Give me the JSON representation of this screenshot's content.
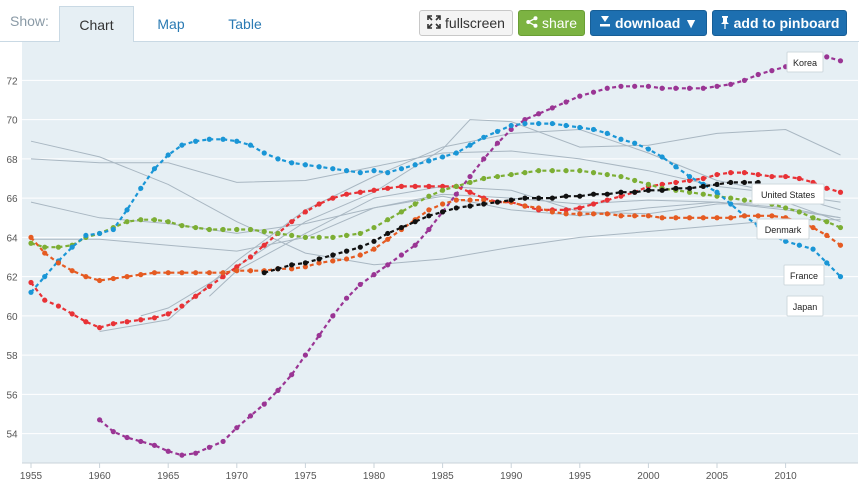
{
  "toolbar": {
    "show_label": "Show:",
    "tabs": [
      {
        "label": "Chart",
        "active": true
      },
      {
        "label": "Map",
        "active": false
      },
      {
        "label": "Table",
        "active": false
      }
    ],
    "fullscreen_label": "fullscreen",
    "share_label": "share",
    "download_label": "download ▼",
    "pin_label": "add to pinboard"
  },
  "colors": {
    "plot_bg": "#e6eff4",
    "korea": "#9a3594",
    "united_states": "#e83236",
    "denmark": "#7cae34",
    "france": "#1a96d6",
    "japan": "#e55b22",
    "black_series": "#111111",
    "background_lines": "#a9b7c2"
  },
  "chart_data": {
    "type": "line",
    "xlim": [
      1955,
      2014
    ],
    "ylim": [
      52.5,
      73.5
    ],
    "x_ticks": [
      1955,
      1960,
      1965,
      1970,
      1975,
      1980,
      1985,
      1990,
      1995,
      2000,
      2005,
      2010
    ],
    "y_ticks": [
      54,
      56,
      58,
      60,
      62,
      64,
      66,
      68,
      70,
      72
    ],
    "grid": true,
    "series": [
      {
        "name": "Korea",
        "color_key": "korea",
        "label_at_end": true,
        "x": [
          1960,
          1961,
          1962,
          1963,
          1964,
          1965,
          1966,
          1967,
          1968,
          1969,
          1970,
          1971,
          1972,
          1973,
          1974,
          1975,
          1976,
          1977,
          1978,
          1979,
          1980,
          1981,
          1982,
          1983,
          1984,
          1985,
          1986,
          1987,
          1988,
          1989,
          1990,
          1991,
          1992,
          1993,
          1994,
          1995,
          1996,
          1997,
          1998,
          1999,
          2000,
          2001,
          2002,
          2003,
          2004,
          2005,
          2006,
          2007,
          2008,
          2009,
          2010,
          2011,
          2012,
          2013,
          2014
        ],
        "y": [
          54.7,
          54.1,
          53.8,
          53.6,
          53.4,
          53.1,
          52.9,
          53.0,
          53.3,
          53.6,
          54.3,
          54.9,
          55.5,
          56.2,
          57.0,
          58.0,
          59.0,
          60.0,
          60.9,
          61.6,
          62.1,
          62.6,
          63.1,
          63.6,
          64.4,
          65.3,
          66.2,
          67.1,
          68.0,
          68.8,
          69.5,
          70.0,
          70.3,
          70.6,
          70.9,
          71.2,
          71.4,
          71.6,
          71.7,
          71.7,
          71.7,
          71.6,
          71.6,
          71.6,
          71.6,
          71.7,
          71.8,
          72.0,
          72.3,
          72.5,
          72.7,
          72.9,
          73.1,
          73.2,
          73.0
        ]
      },
      {
        "name": "United States",
        "color_key": "united_states",
        "label_at_end": true,
        "x": [
          1955,
          1956,
          1957,
          1958,
          1959,
          1960,
          1961,
          1962,
          1963,
          1964,
          1965,
          1966,
          1967,
          1968,
          1969,
          1970,
          1971,
          1972,
          1973,
          1974,
          1975,
          1976,
          1977,
          1978,
          1979,
          1980,
          1981,
          1982,
          1983,
          1984,
          1985,
          1986,
          1987,
          1988,
          1989,
          1990,
          1991,
          1992,
          1993,
          1994,
          1995,
          1996,
          1997,
          1998,
          1999,
          2000,
          2001,
          2002,
          2003,
          2004,
          2005,
          2006,
          2007,
          2008,
          2009,
          2010,
          2011,
          2012,
          2013,
          2014
        ],
        "y": [
          61.7,
          60.8,
          60.5,
          60.1,
          59.7,
          59.4,
          59.6,
          59.7,
          59.8,
          59.9,
          60.1,
          60.5,
          61.0,
          61.5,
          62.0,
          62.5,
          63.0,
          63.6,
          64.2,
          64.8,
          65.3,
          65.7,
          66.0,
          66.2,
          66.3,
          66.4,
          66.5,
          66.6,
          66.6,
          66.6,
          66.6,
          66.6,
          66.3,
          66.0,
          65.8,
          65.8,
          65.6,
          65.4,
          65.4,
          65.4,
          65.5,
          65.7,
          65.9,
          66.1,
          66.3,
          66.6,
          66.7,
          66.8,
          66.9,
          67.0,
          67.2,
          67.3,
          67.3,
          67.2,
          67.1,
          67.1,
          67.0,
          66.8,
          66.5,
          66.3
        ]
      },
      {
        "name": "Denmark",
        "color_key": "denmark",
        "label_at_end": true,
        "x": [
          1955,
          1956,
          1957,
          1958,
          1959,
          1960,
          1961,
          1962,
          1963,
          1964,
          1965,
          1966,
          1967,
          1968,
          1969,
          1970,
          1971,
          1972,
          1973,
          1974,
          1975,
          1976,
          1977,
          1978,
          1979,
          1980,
          1981,
          1982,
          1983,
          1984,
          1985,
          1986,
          1987,
          1988,
          1989,
          1990,
          1991,
          1992,
          1993,
          1994,
          1995,
          1996,
          1997,
          1998,
          1999,
          2000,
          2001,
          2002,
          2003,
          2004,
          2005,
          2006,
          2007,
          2008,
          2009,
          2010,
          2011,
          2012,
          2013,
          2014
        ],
        "y": [
          63.7,
          63.5,
          63.5,
          63.6,
          64.0,
          64.2,
          64.5,
          64.8,
          64.9,
          64.9,
          64.8,
          64.6,
          64.5,
          64.4,
          64.4,
          64.4,
          64.4,
          64.3,
          64.2,
          64.1,
          64.0,
          64.0,
          64.0,
          64.1,
          64.2,
          64.5,
          64.9,
          65.3,
          65.7,
          66.1,
          66.4,
          66.6,
          66.8,
          67.0,
          67.1,
          67.2,
          67.3,
          67.4,
          67.4,
          67.4,
          67.4,
          67.3,
          67.2,
          67.1,
          66.9,
          66.7,
          66.5,
          66.4,
          66.3,
          66.2,
          66.1,
          66.0,
          65.9,
          65.8,
          65.7,
          65.5,
          65.3,
          65.0,
          64.8,
          64.5
        ]
      },
      {
        "name": "France",
        "color_key": "france",
        "label_at_end": true,
        "x": [
          1955,
          1956,
          1957,
          1958,
          1959,
          1960,
          1961,
          1962,
          1963,
          1964,
          1965,
          1966,
          1967,
          1968,
          1969,
          1970,
          1971,
          1972,
          1973,
          1974,
          1975,
          1976,
          1977,
          1978,
          1979,
          1980,
          1981,
          1982,
          1983,
          1984,
          1985,
          1986,
          1987,
          1988,
          1989,
          1990,
          1991,
          1992,
          1993,
          1994,
          1995,
          1996,
          1997,
          1998,
          1999,
          2000,
          2001,
          2002,
          2003,
          2004,
          2005,
          2006,
          2007,
          2008,
          2009,
          2010,
          2011,
          2012,
          2013,
          2014
        ],
        "y": [
          61.2,
          62.0,
          62.8,
          63.5,
          64.1,
          64.2,
          64.4,
          65.4,
          66.5,
          67.5,
          68.2,
          68.7,
          68.9,
          69.0,
          69.0,
          68.9,
          68.7,
          68.3,
          68.0,
          67.8,
          67.7,
          67.6,
          67.5,
          67.4,
          67.3,
          67.4,
          67.3,
          67.5,
          67.7,
          67.9,
          68.1,
          68.3,
          68.7,
          69.1,
          69.4,
          69.7,
          69.8,
          69.8,
          69.8,
          69.7,
          69.6,
          69.5,
          69.3,
          69.0,
          68.8,
          68.5,
          68.1,
          67.6,
          67.1,
          66.7,
          66.3,
          65.7,
          65.1,
          64.6,
          64.1,
          63.8,
          63.6,
          63.4,
          62.7,
          62.0
        ]
      },
      {
        "name": "Japan",
        "color_key": "japan",
        "label_at_end": true,
        "x": [
          1955,
          1956,
          1957,
          1958,
          1959,
          1960,
          1961,
          1962,
          1963,
          1964,
          1965,
          1966,
          1967,
          1968,
          1969,
          1970,
          1971,
          1972,
          1973,
          1974,
          1975,
          1976,
          1977,
          1978,
          1979,
          1980,
          1981,
          1982,
          1983,
          1984,
          1985,
          1986,
          1987,
          1988,
          1989,
          1990,
          1991,
          1992,
          1993,
          1994,
          1995,
          1996,
          1997,
          1998,
          1999,
          2000,
          2001,
          2002,
          2003,
          2004,
          2005,
          2006,
          2007,
          2008,
          2009,
          2010,
          2011,
          2012,
          2013,
          2014
        ],
        "y": [
          64.0,
          63.2,
          62.7,
          62.3,
          62.0,
          61.8,
          61.9,
          62.0,
          62.1,
          62.2,
          62.2,
          62.2,
          62.2,
          62.2,
          62.2,
          62.3,
          62.3,
          62.3,
          62.4,
          62.4,
          62.5,
          62.7,
          62.8,
          62.9,
          63.1,
          63.4,
          63.9,
          64.4,
          64.9,
          65.4,
          65.7,
          65.9,
          65.9,
          65.9,
          65.8,
          65.8,
          65.6,
          65.5,
          65.3,
          65.2,
          65.2,
          65.2,
          65.2,
          65.1,
          65.1,
          65.1,
          65.0,
          65.0,
          65.0,
          65.0,
          65.0,
          65.0,
          65.1,
          65.1,
          65.1,
          65.0,
          64.8,
          64.5,
          64.1,
          63.6
        ]
      },
      {
        "name": "",
        "color_key": "black_series",
        "label_at_end": false,
        "x": [
          1972,
          1973,
          1974,
          1975,
          1976,
          1977,
          1978,
          1979,
          1980,
          1981,
          1982,
          1983,
          1984,
          1985,
          1986,
          1987,
          1988,
          1989,
          1990,
          1991,
          1992,
          1993,
          1994,
          1995,
          1996,
          1997,
          1998,
          1999,
          2000,
          2001,
          2002,
          2003,
          2004,
          2005,
          2006,
          2007,
          2008
        ],
        "y": [
          62.2,
          62.4,
          62.6,
          62.7,
          62.9,
          63.1,
          63.3,
          63.5,
          63.8,
          64.2,
          64.5,
          64.8,
          65.1,
          65.3,
          65.5,
          65.6,
          65.7,
          65.8,
          65.9,
          66.0,
          66.0,
          66.0,
          66.1,
          66.1,
          66.2,
          66.2,
          66.3,
          66.3,
          66.4,
          66.4,
          66.5,
          66.5,
          66.6,
          66.7,
          66.8,
          66.8,
          66.8
        ]
      }
    ],
    "background_series": [
      {
        "x": [
          1955,
          1960,
          1965,
          1970,
          1975,
          1980,
          1985,
          1990,
          1995,
          2000,
          2005,
          2010,
          2014
        ],
        "y": [
          68.9,
          68.1,
          66.7,
          64.8,
          63.2,
          62.6,
          62.9,
          63.5,
          64.0,
          64.3,
          64.6,
          64.9,
          64.9
        ]
      },
      {
        "x": [
          1955,
          1960,
          1965,
          1970,
          1975,
          1980,
          1985,
          1990,
          1995,
          2000,
          2005,
          2010,
          2014
        ],
        "y": [
          68.0,
          67.8,
          67.8,
          66.8,
          66.9,
          67.6,
          68.3,
          68.4,
          68.0,
          67.4,
          66.6,
          66.2,
          65.8
        ]
      },
      {
        "x": [
          1955,
          1960,
          1965,
          1970,
          1975,
          1980,
          1985,
          1990,
          1995,
          2000,
          2005,
          2010,
          2014
        ],
        "y": [
          65.8,
          65.0,
          64.7,
          64.2,
          64.7,
          65.5,
          66.1,
          65.4,
          65.1,
          65.5,
          65.8,
          65.5,
          65.0
        ]
      },
      {
        "x": [
          1963,
          1965,
          1970,
          1975,
          1980,
          1985,
          1987,
          1990,
          1995,
          2000,
          2005,
          2010,
          2014
        ],
        "y": [
          60.0,
          60.4,
          62.5,
          64.8,
          66.3,
          68.5,
          70.0,
          69.9,
          68.6,
          68.7,
          69.3,
          69.5,
          68.2
        ]
      },
      {
        "x": [
          1960,
          1965,
          1970,
          1975,
          1980,
          1985,
          1990,
          1995,
          2000,
          2005,
          2010,
          2014
        ],
        "y": [
          59.2,
          59.8,
          62.8,
          65.4,
          67.1,
          68.6,
          69.3,
          69.5,
          68.3,
          66.9,
          66.2,
          65.4
        ]
      },
      {
        "x": [
          1955,
          1960,
          1965,
          1970,
          1975,
          1980,
          1985,
          1990,
          1995,
          2000,
          2005,
          2010,
          2014
        ],
        "y": [
          63.9,
          63.9,
          63.6,
          63.3,
          64.0,
          65.5,
          66.2,
          66.0,
          65.7,
          65.9,
          65.8,
          65.4,
          65.0
        ]
      },
      {
        "x": [
          1968,
          1970,
          1975,
          1980,
          1985,
          1990,
          1995,
          2000,
          2005,
          2010,
          2014
        ],
        "y": [
          61.0,
          62.3,
          64.2,
          66.0,
          66.6,
          66.4,
          65.3,
          65.2,
          65.7,
          65.8,
          64.8
        ]
      }
    ]
  }
}
